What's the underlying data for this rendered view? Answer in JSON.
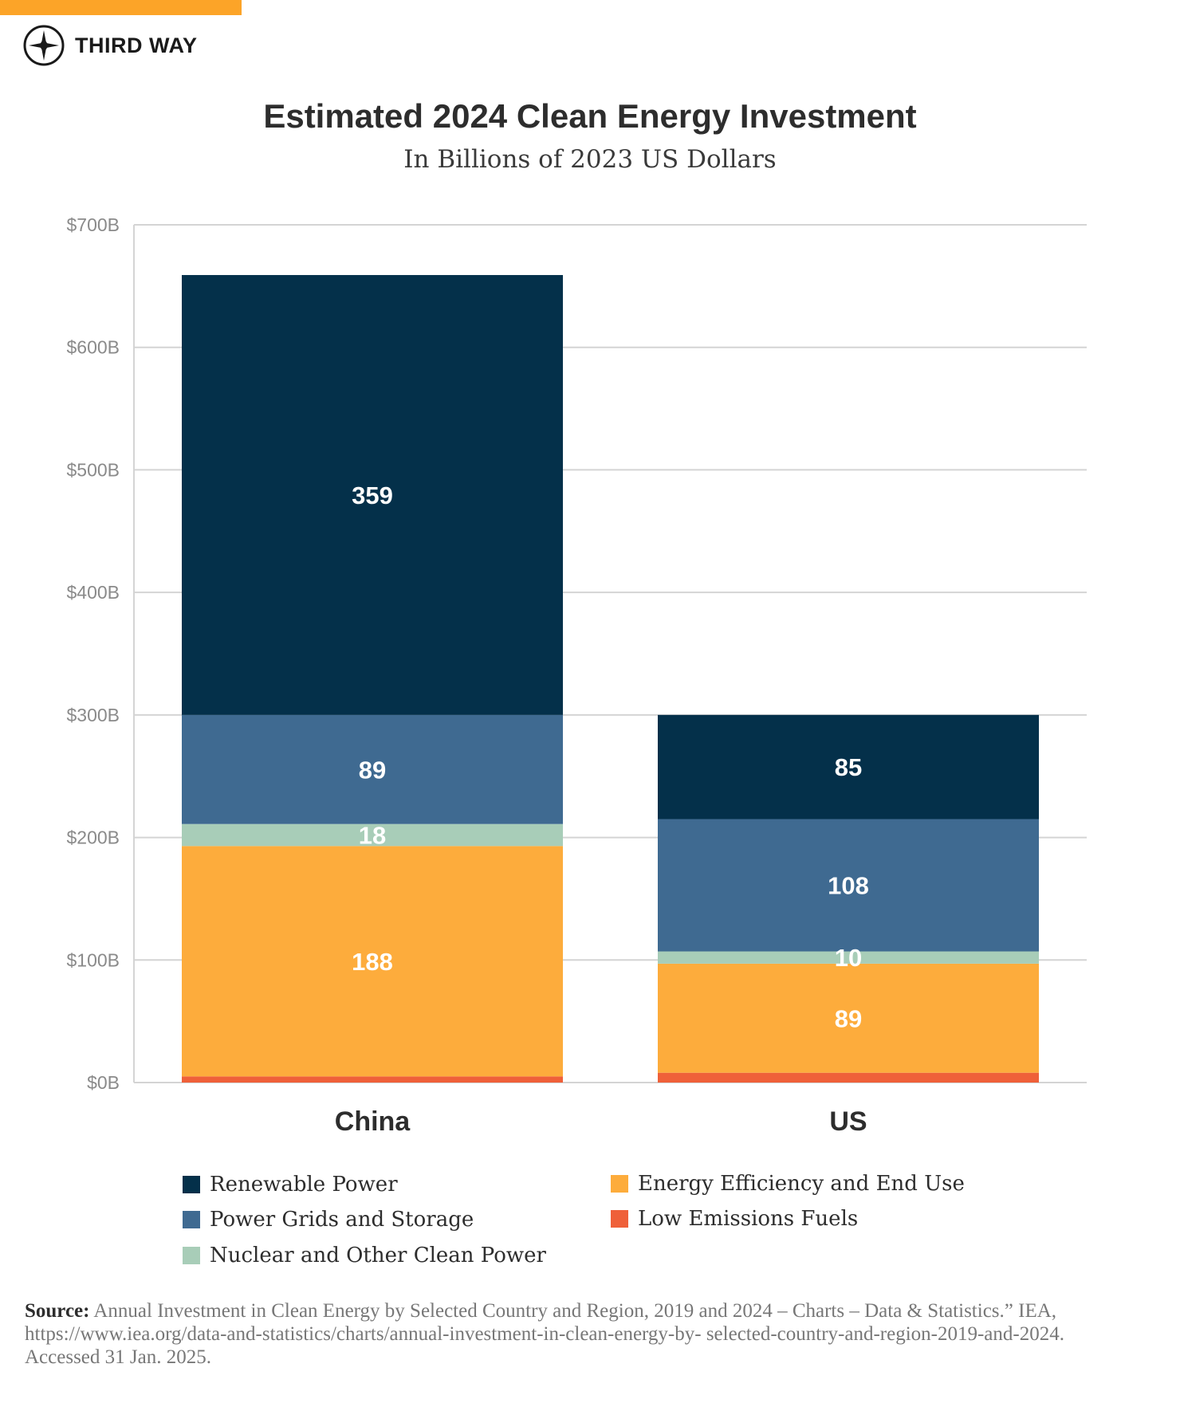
{
  "brand": {
    "name": "THIRD WAY",
    "accent_color": "#fca428"
  },
  "chart_data": {
    "type": "bar",
    "stacked": true,
    "title": "Estimated 2024 Clean Energy Investment",
    "subtitle": "In Billions of 2023 US Dollars",
    "categories": [
      "China",
      "US"
    ],
    "ylim": [
      0,
      700
    ],
    "yticks": [
      0,
      100,
      200,
      300,
      400,
      500,
      600,
      700
    ],
    "ytick_labels": [
      "$0B",
      "$100B",
      "$200B",
      "$300B",
      "$400B",
      "$500B",
      "$600B",
      "$700B"
    ],
    "grid": true,
    "legend_position": "bottom",
    "series": [
      {
        "name": "Low Emissions Fuels",
        "color": "#ef6039",
        "values": [
          5,
          8
        ],
        "labels": [
          "",
          ""
        ]
      },
      {
        "name": "Energy Efficiency and End Use",
        "color": "#fdac3c",
        "values": [
          188,
          89
        ],
        "labels": [
          "188",
          "89"
        ]
      },
      {
        "name": "Nuclear and Other Clean Power",
        "color": "#a8cdb8",
        "values": [
          18,
          10
        ],
        "labels": [
          "18",
          "10"
        ]
      },
      {
        "name": "Power Grids and Storage",
        "color": "#3f6a91",
        "values": [
          89,
          108
        ],
        "labels": [
          "89",
          "108"
        ]
      },
      {
        "name": "Renewable Power",
        "color": "#04304a",
        "values": [
          359,
          85
        ],
        "labels": [
          "359",
          "85"
        ]
      }
    ],
    "legend_order": [
      4,
      3,
      2,
      1,
      0
    ]
  },
  "source": {
    "label": "Source:",
    "text": "Annual Investment in Clean Energy by Selected Country and Region, 2019 and 2024 – Charts – Data & Statistics.” IEA, https://www.iea.org/data-and-statistics/charts/annual-investment-in-clean-energy-by- selected-country-and-region-2019-and-2024. Accessed 31 Jan. 2025."
  }
}
